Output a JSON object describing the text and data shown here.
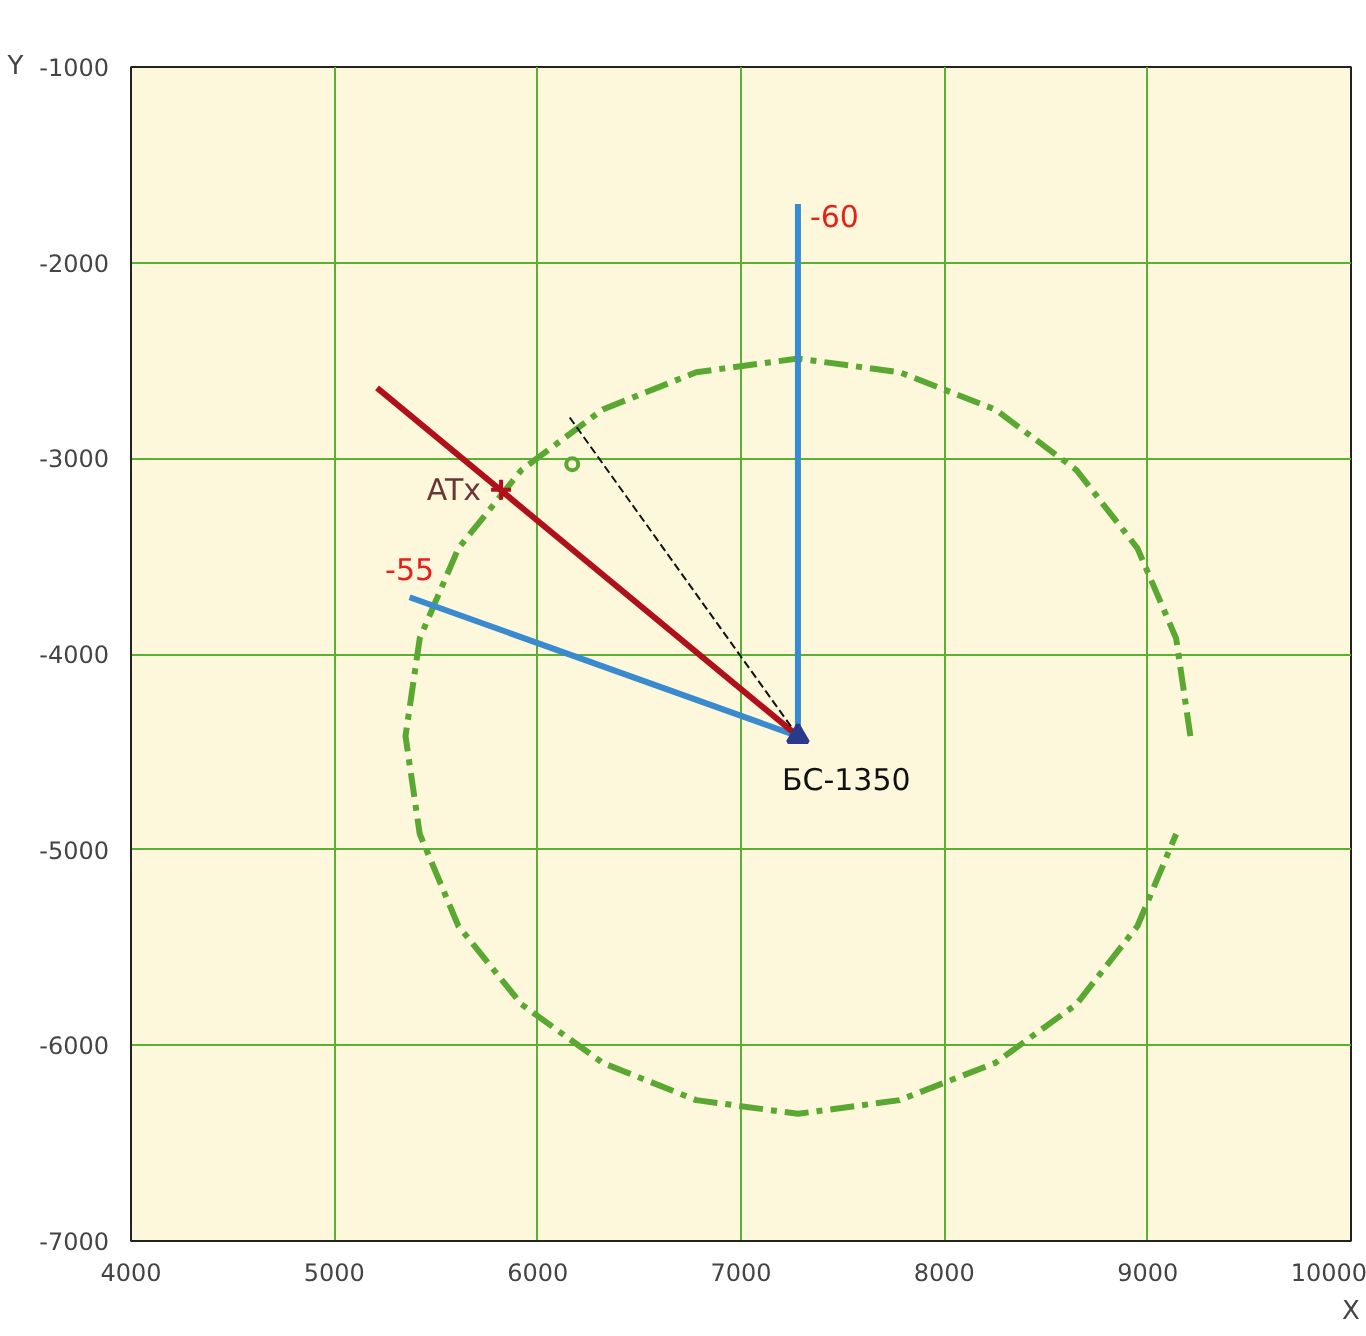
{
  "chart_data": {
    "type": "line",
    "xlabel": "X",
    "ylabel": "Y",
    "xlim": [
      4000,
      10000
    ],
    "ylim": [
      -7000,
      -1000
    ],
    "xticks": [
      4000,
      5000,
      6000,
      7000,
      8000,
      9000,
      10000
    ],
    "yticks": [
      -7000,
      -6000,
      -5000,
      -4000,
      -3000,
      -2000,
      -1000
    ],
    "grid": true,
    "series": [
      {
        "color": "#5aa832",
        "line_style": "dashed",
        "x": [
          9210,
          9140,
          8950,
          8650,
          8250,
          7780,
          7280,
          6780,
          6320,
          5920,
          5610,
          5420,
          5350,
          5420,
          5610,
          5920,
          6320,
          6780,
          7280,
          7780,
          8250,
          8650,
          8950,
          9140
        ],
        "values": [
          -4420,
          -3920,
          -3460,
          -3060,
          -2750,
          -2560,
          -2490,
          -2560,
          -2750,
          -3060,
          -3460,
          -3920,
          -4420,
          -4920,
          -5390,
          -5790,
          -6090,
          -6280,
          -6350,
          -6280,
          -6090,
          -5790,
          -5390,
          -4920
        ]
      },
      {
        "name": "-60",
        "color": "#3a8ad0",
        "line_style": "solid",
        "x": [
          7280,
          7280
        ],
        "values": [
          -4420,
          -1700
        ]
      },
      {
        "name": "-55",
        "color": "#3a8ad0",
        "line_style": "solid",
        "x": [
          7280,
          5370
        ],
        "values": [
          -4420,
          -3710
        ]
      },
      {
        "color": "#b0101a",
        "line_style": "solid",
        "x": [
          7280,
          5210
        ],
        "values": [
          -4420,
          -2640
        ]
      },
      {
        "color": "#111111",
        "line_style": "dashed",
        "x": [
          7280,
          6150
        ],
        "values": [
          -4420,
          -2780
        ]
      },
      {
        "name": "ATx",
        "type": "scatter",
        "color": "#b0101a",
        "marker": "cross",
        "x": [
          5820
        ],
        "values": [
          -3160
        ]
      },
      {
        "type": "scatter",
        "color": "#5aa832",
        "marker": "circle",
        "x": [
          6170
        ],
        "values": [
          -3030
        ]
      },
      {
        "name": "БС-1350",
        "type": "scatter",
        "color": "#2a3a8a",
        "marker": "triangle",
        "x": [
          7280
        ],
        "values": [
          -4420
        ]
      }
    ]
  }
}
